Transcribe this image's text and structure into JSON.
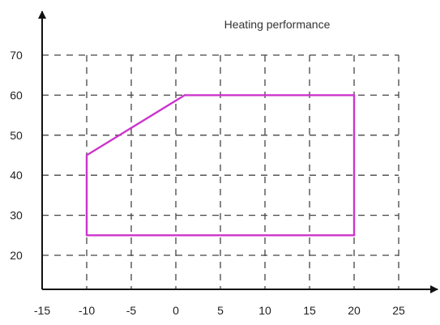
{
  "chart_data": {
    "type": "line",
    "title": "Heating performance",
    "xlabel": "",
    "ylabel": "",
    "xlim": [
      -15,
      25
    ],
    "ylim": [
      20,
      70
    ],
    "x_ticks": [
      "-15",
      "-10",
      "-5",
      "0",
      "5",
      "10",
      "15",
      "20",
      "25"
    ],
    "y_ticks": [
      "20",
      "30",
      "40",
      "50",
      "60",
      "70"
    ],
    "grid": true,
    "series": [
      {
        "color": "#cc33cc",
        "closed": true,
        "points": [
          {
            "x": -10,
            "y": 25
          },
          {
            "x": -10,
            "y": 45
          },
          {
            "x": 1,
            "y": 60
          },
          {
            "x": 20,
            "y": 60
          },
          {
            "x": 20,
            "y": 25
          },
          {
            "x": -10,
            "y": 25
          }
        ]
      }
    ]
  }
}
